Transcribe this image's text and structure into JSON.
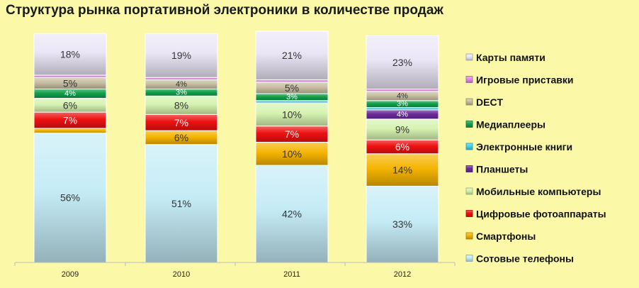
{
  "chart_data": {
    "type": "bar",
    "stacked": true,
    "title": "Структура рынка портативной электроники в количестве продаж",
    "xlabel": "",
    "ylabel": "",
    "ylim": [
      0,
      100
    ],
    "grid": false,
    "legend_position": "right",
    "categories": [
      "2009",
      "2010",
      "2011",
      "2012"
    ],
    "series": [
      {
        "name": "Сотовые телефоны",
        "color": "#c5ecf6",
        "values": [
          56,
          51,
          42,
          33
        ],
        "labels": [
          "56%",
          "51%",
          "42%",
          "33%"
        ],
        "label_color": "#333333"
      },
      {
        "name": "Смартфоны",
        "color": "#f5b400",
        "values": [
          2,
          6,
          10,
          14
        ],
        "labels": [
          "",
          "6%",
          "10%",
          "14%"
        ],
        "label_color": "#333333"
      },
      {
        "name": "Цифровые фотоаппараты",
        "color": "#ee1111",
        "values": [
          7,
          7,
          7,
          6
        ],
        "labels": [
          "7%",
          "7%",
          "7%",
          "6%"
        ],
        "label_color": "#ffffff"
      },
      {
        "name": "Мобильные компьютеры",
        "color": "#d6f3b0",
        "values": [
          6,
          8,
          10,
          9
        ],
        "labels": [
          "6%",
          "8%",
          "10%",
          "9%"
        ],
        "label_color": "#333333"
      },
      {
        "name": "Планшеты",
        "color": "#6a2c9a",
        "values": [
          0,
          0,
          0,
          4
        ],
        "labels": [
          "",
          "",
          "",
          "4%"
        ],
        "label_color": "#ffffff"
      },
      {
        "name": "Электронные книги",
        "color": "#45d2e8",
        "values": [
          0,
          0,
          1,
          1
        ],
        "labels": [
          "",
          "",
          "",
          ""
        ],
        "label_color": "#333333"
      },
      {
        "name": "Медиаплееры",
        "color": "#12a04a",
        "values": [
          4,
          3,
          3,
          3
        ],
        "labels": [
          "4%",
          "3%",
          "3%",
          "3%"
        ],
        "label_color": "#ffffff"
      },
      {
        "name": "DECT",
        "color": "#c8bfa2",
        "values": [
          5,
          4,
          5,
          4
        ],
        "labels": [
          "5%",
          "4%",
          "5%",
          "4%"
        ],
        "label_color": "#333333"
      },
      {
        "name": "Игровые приставки",
        "color": "#e38ae6",
        "values": [
          1,
          1,
          1,
          1
        ],
        "labels": [
          "",
          "",
          "",
          ""
        ],
        "label_color": "#333333"
      },
      {
        "name": "Карты памяти",
        "color": "#ebe6f7",
        "values": [
          18,
          19,
          21,
          23
        ],
        "labels": [
          "18%",
          "19%",
          "21%",
          "23%"
        ],
        "label_color": "#333333"
      }
    ]
  }
}
